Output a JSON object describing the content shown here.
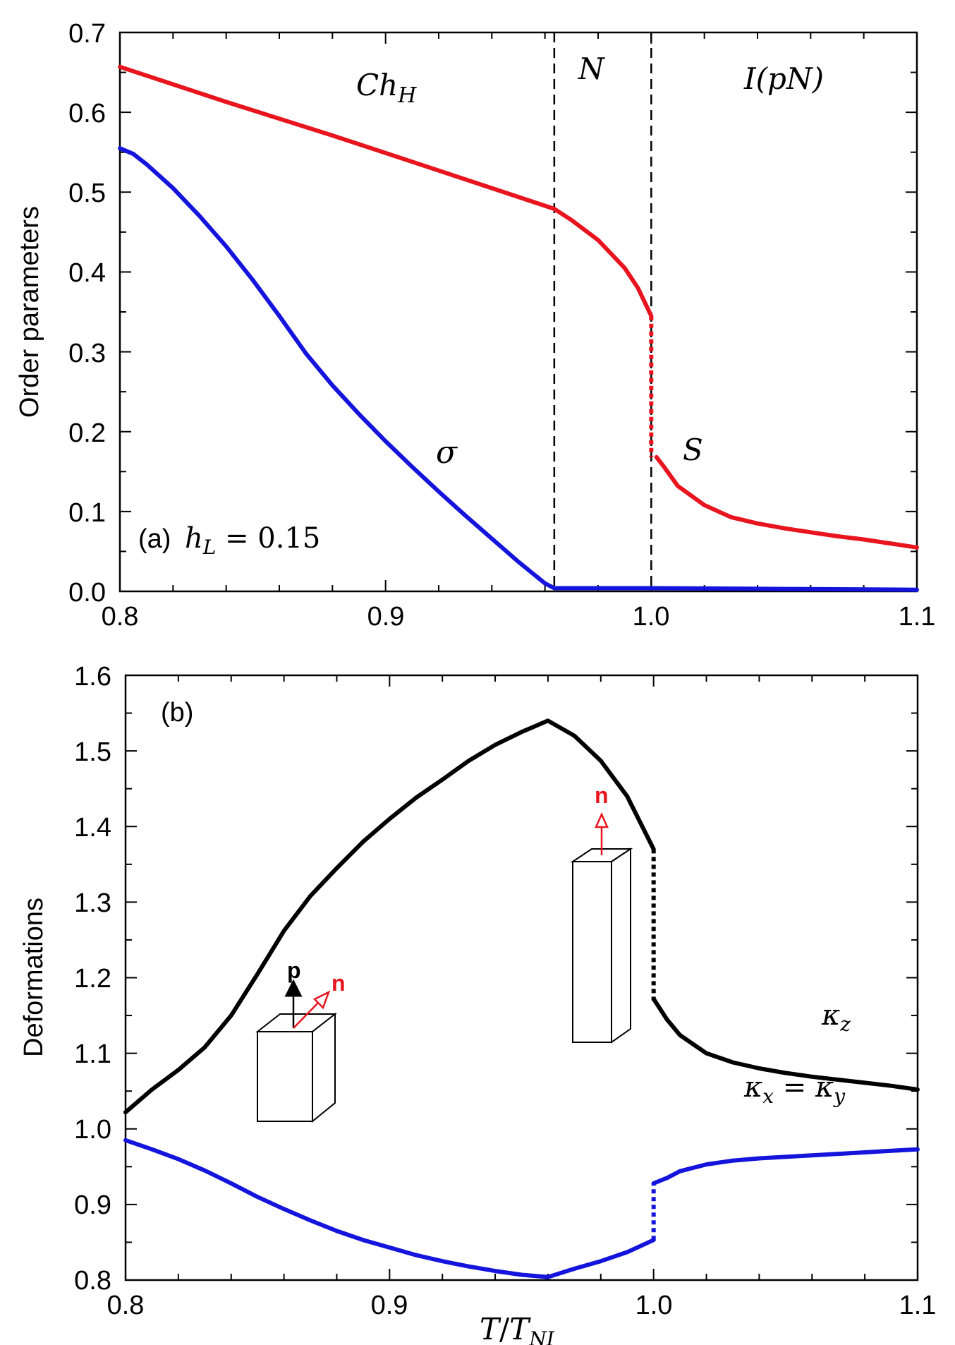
{
  "chart_data": [
    {
      "type": "line",
      "panel": "(a)",
      "xlim": [
        0.8,
        1.1
      ],
      "ylim": [
        0.0,
        0.7
      ],
      "xticks": [
        "0.8",
        "0.9",
        "1.0",
        "1.1"
      ],
      "yticks": [
        "0.0",
        "0.1",
        "0.2",
        "0.3",
        "0.4",
        "0.5",
        "0.6",
        "0.7"
      ],
      "ylabel": "Order parameters",
      "annotation_param": "h_L = 0.15",
      "phase_boundaries": [
        0.9635,
        1.0
      ],
      "phase_labels": [
        "Ch_H",
        "N",
        "I(pN)"
      ],
      "series": [
        {
          "name": "S",
          "color": "#e8141e",
          "segments": [
            {
              "style": "solid",
              "x": [
                0.8,
                0.82,
                0.84,
                0.86,
                0.88,
                0.9,
                0.92,
                0.94,
                0.9635,
                0.97,
                0.98,
                0.99,
                0.995,
                1.0
              ],
              "y": [
                0.657,
                0.635,
                0.613,
                0.592,
                0.571,
                0.549,
                0.527,
                0.505,
                0.479,
                0.465,
                0.44,
                0.405,
                0.38,
                0.345
              ]
            },
            {
              "style": "dotted",
              "x": [
                1.0,
                1.0
              ],
              "y": [
                0.345,
                0.168
              ]
            },
            {
              "style": "solid",
              "x": [
                1.002,
                1.005,
                1.01,
                1.02,
                1.03,
                1.04,
                1.05,
                1.06,
                1.07,
                1.08,
                1.09,
                1.1
              ],
              "y": [
                0.168,
                0.155,
                0.132,
                0.108,
                0.093,
                0.085,
                0.079,
                0.074,
                0.069,
                0.065,
                0.06,
                0.055
              ]
            }
          ]
        },
        {
          "name": "σ",
          "color": "#1414dc",
          "segments": [
            {
              "style": "solid",
              "x": [
                0.8,
                0.805,
                0.81,
                0.82,
                0.83,
                0.84,
                0.85,
                0.86,
                0.87,
                0.88,
                0.89,
                0.9,
                0.91,
                0.92,
                0.93,
                0.94,
                0.95,
                0.96,
                0.9635,
                0.98,
                1.0,
                1.05,
                1.1
              ],
              "y": [
                0.555,
                0.548,
                0.535,
                0.505,
                0.47,
                0.432,
                0.39,
                0.345,
                0.298,
                0.258,
                0.222,
                0.188,
                0.156,
                0.125,
                0.095,
                0.066,
                0.037,
                0.01,
                0.004,
                0.004,
                0.004,
                0.003,
                0.002
              ]
            }
          ]
        }
      ]
    },
    {
      "type": "line",
      "panel": "(b)",
      "xlim": [
        0.8,
        1.1
      ],
      "ylim": [
        0.8,
        1.6
      ],
      "xticks": [
        "0.8",
        "0.9",
        "1.0",
        "1.1"
      ],
      "yticks": [
        "0.8",
        "0.9",
        "1.0",
        "1.1",
        "1.2",
        "1.3",
        "1.4",
        "1.5",
        "1.6"
      ],
      "xlabel": "T/T_NI",
      "ylabel": "Deformations",
      "series": [
        {
          "name": "κ_z",
          "color": "#000000",
          "segments": [
            {
              "style": "solid",
              "x": [
                0.8,
                0.81,
                0.82,
                0.83,
                0.84,
                0.85,
                0.86,
                0.87,
                0.88,
                0.89,
                0.9,
                0.91,
                0.92,
                0.93,
                0.94,
                0.95,
                0.96,
                0.97,
                0.98,
                0.99,
                1.0
              ],
              "y": [
                1.022,
                1.052,
                1.078,
                1.108,
                1.15,
                1.205,
                1.262,
                1.308,
                1.345,
                1.38,
                1.41,
                1.438,
                1.462,
                1.487,
                1.508,
                1.525,
                1.54,
                1.52,
                1.487,
                1.44,
                1.37
              ]
            },
            {
              "style": "dotted",
              "x": [
                1.0,
                1.0
              ],
              "y": [
                1.37,
                1.17
              ]
            },
            {
              "style": "solid",
              "x": [
                1.0,
                1.005,
                1.01,
                1.02,
                1.03,
                1.04,
                1.05,
                1.06,
                1.07,
                1.08,
                1.09,
                1.1
              ],
              "y": [
                1.172,
                1.145,
                1.124,
                1.1,
                1.088,
                1.08,
                1.074,
                1.069,
                1.065,
                1.061,
                1.057,
                1.052
              ]
            }
          ]
        },
        {
          "name": "κ_x = κ_y",
          "color": "#1414dc",
          "segments": [
            {
              "style": "solid",
              "x": [
                0.8,
                0.81,
                0.82,
                0.83,
                0.84,
                0.85,
                0.86,
                0.87,
                0.88,
                0.89,
                0.9,
                0.91,
                0.92,
                0.93,
                0.94,
                0.95,
                0.96,
                0.97,
                0.98,
                0.99,
                1.0
              ],
              "y": [
                0.985,
                0.973,
                0.96,
                0.945,
                0.928,
                0.91,
                0.894,
                0.879,
                0.865,
                0.853,
                0.843,
                0.833,
                0.825,
                0.818,
                0.812,
                0.807,
                0.804,
                0.815,
                0.825,
                0.837,
                0.853
              ]
            },
            {
              "style": "dotted",
              "x": [
                1.0,
                1.0
              ],
              "y": [
                0.853,
                0.928
              ]
            },
            {
              "style": "solid",
              "x": [
                1.0,
                1.005,
                1.01,
                1.02,
                1.03,
                1.04,
                1.05,
                1.06,
                1.07,
                1.08,
                1.09,
                1.1
              ],
              "y": [
                0.928,
                0.935,
                0.944,
                0.953,
                0.958,
                0.961,
                0.963,
                0.965,
                0.967,
                0.969,
                0.971,
                0.973
              ]
            }
          ]
        }
      ]
    }
  ],
  "labels": {
    "panel_a": "(a)",
    "panel_b": "(b)",
    "ylabel_a": "Order parameters",
    "ylabel_b": "Deformations",
    "xlabel_T": "T",
    "xlabel_slash": "/",
    "xlabel_Tsub": "NI",
    "phase_ch": "Ch",
    "phase_ch_sub": "H",
    "phase_n": "N",
    "phase_i": "I(pN)",
    "s_label": "S",
    "sigma_label": "σ",
    "hl_h": "h",
    "hl_sub": "L",
    "hl_value": " = 0.15",
    "kz_kappa": "κ",
    "kz_sub": "z",
    "kxy_kappa1": "κ",
    "kxy_sub1": "x",
    "kxy_eq": " = ",
    "kxy_kappa2": "κ",
    "kxy_sub2": "y",
    "vec_p": "p",
    "vec_n1": "n",
    "vec_n2": "n"
  },
  "colors": {
    "red": "#e8141e",
    "blue": "#1414dc",
    "black": "#000000"
  }
}
